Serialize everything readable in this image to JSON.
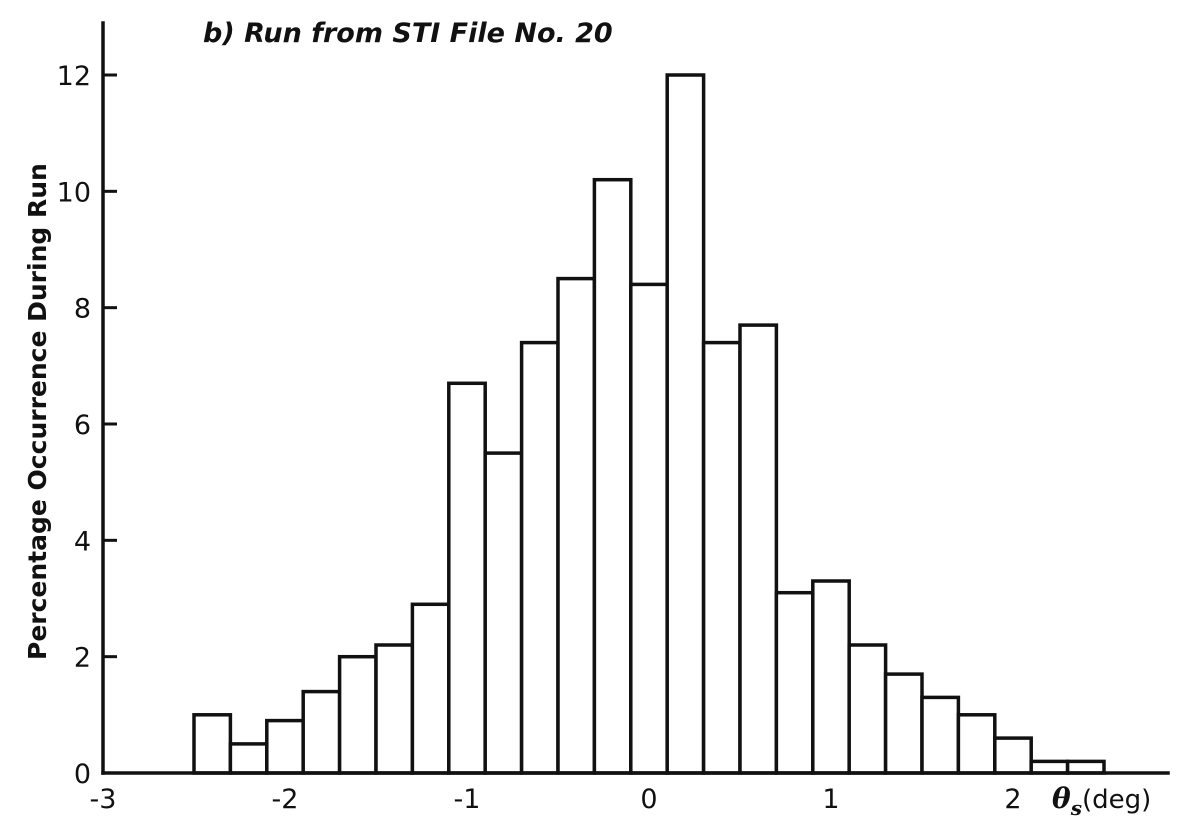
{
  "chart_data": {
    "type": "bar",
    "title": "b) Run from STI File No. 20",
    "ylabel": "Percentage Occurrence During Run",
    "xlabel": {
      "symbol": "θ",
      "subscript": "s",
      "unit": "(deg)"
    },
    "xlim": [
      -3,
      2.5
    ],
    "ylim": [
      0,
      13
    ],
    "x_ticks": [
      -3,
      -2,
      -1,
      0,
      1,
      2
    ],
    "x_tick_labels": [
      "-3",
      "-2",
      "-1",
      "0",
      "1",
      "2"
    ],
    "y_ticks": [
      0,
      2,
      4,
      6,
      8,
      10,
      12
    ],
    "y_tick_labels": [
      "0",
      "2",
      "4",
      "6",
      "8",
      "10",
      "12"
    ],
    "bin_width": 0.2,
    "bins": [
      {
        "start": -2.5,
        "value": 1.0
      },
      {
        "start": -2.3,
        "value": 0.5
      },
      {
        "start": -2.1,
        "value": 0.9
      },
      {
        "start": -1.9,
        "value": 1.4
      },
      {
        "start": -1.7,
        "value": 2.0
      },
      {
        "start": -1.5,
        "value": 2.2
      },
      {
        "start": -1.3,
        "value": 2.9
      },
      {
        "start": -1.1,
        "value": 6.7
      },
      {
        "start": -0.9,
        "value": 5.5
      },
      {
        "start": -0.7,
        "value": 7.4
      },
      {
        "start": -0.5,
        "value": 8.5
      },
      {
        "start": -0.3,
        "value": 10.2
      },
      {
        "start": -0.1,
        "value": 8.4
      },
      {
        "start": 0.1,
        "value": 12.0
      },
      {
        "start": 0.3,
        "value": 7.4
      },
      {
        "start": 0.5,
        "value": 7.7
      },
      {
        "start": 0.7,
        "value": 3.1
      },
      {
        "start": 0.9,
        "value": 3.3
      },
      {
        "start": 1.1,
        "value": 2.2
      },
      {
        "start": 1.3,
        "value": 1.7
      },
      {
        "start": 1.5,
        "value": 1.3
      },
      {
        "start": 1.7,
        "value": 1.0
      },
      {
        "start": 1.9,
        "value": 0.6
      },
      {
        "start": 2.1,
        "value": 0.2
      },
      {
        "start": 2.3,
        "value": 0.2
      }
    ],
    "grid": false,
    "legend": "none"
  }
}
